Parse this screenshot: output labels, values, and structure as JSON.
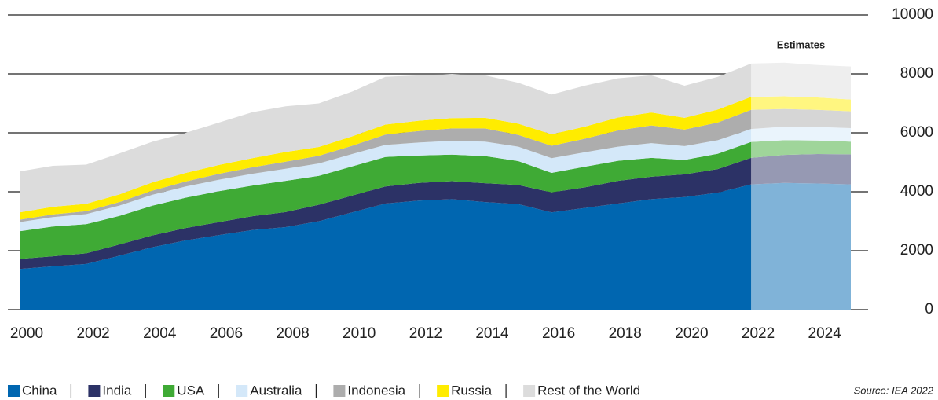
{
  "chart_data": {
    "type": "stacked_area",
    "x": [
      2000,
      2001,
      2002,
      2003,
      2004,
      2005,
      2006,
      2007,
      2008,
      2009,
      2010,
      2011,
      2012,
      2013,
      2014,
      2015,
      2016,
      2017,
      2018,
      2019,
      2020,
      2021,
      2022,
      2023,
      2024,
      2025
    ],
    "series": [
      {
        "name": "China",
        "color": "#0066b0",
        "values": [
          1380,
          1470,
          1550,
          1830,
          2120,
          2350,
          2530,
          2700,
          2800,
          3000,
          3300,
          3600,
          3700,
          3750,
          3650,
          3580,
          3300,
          3450,
          3600,
          3750,
          3820,
          3970,
          4250,
          4300,
          4280,
          4250
        ]
      },
      {
        "name": "India",
        "color": "#2c3266",
        "values": [
          340,
          340,
          360,
          380,
          400,
          420,
          440,
          470,
          510,
          560,
          570,
          580,
          600,
          610,
          640,
          650,
          680,
          700,
          770,
          760,
          770,
          800,
          900,
          950,
          1000,
          1020
        ]
      },
      {
        "name": "USA",
        "color": "#3faa35",
        "values": [
          940,
          1010,
          990,
          970,
          1010,
          1030,
          1050,
          1040,
          1060,
          980,
          990,
          1000,
          930,
          900,
          920,
          810,
          660,
          700,
          680,
          640,
          490,
          520,
          540,
          500,
          460,
          430
        ]
      },
      {
        "name": "Australia",
        "color": "#d4e8f9",
        "values": [
          310,
          320,
          340,
          350,
          370,
          380,
          390,
          400,
          410,
          420,
          420,
          410,
          440,
          470,
          490,
          490,
          500,
          490,
          480,
          500,
          470,
          460,
          440,
          460,
          460,
          460
        ]
      },
      {
        "name": "Indonesia",
        "color": "#adadad",
        "values": [
          80,
          90,
          100,
          120,
          140,
          170,
          200,
          220,
          240,
          260,
          280,
          350,
          390,
          420,
          450,
          400,
          420,
          460,
          550,
          600,
          560,
          600,
          650,
          600,
          580,
          570
        ]
      },
      {
        "name": "Russia",
        "color": "#ffec00",
        "values": [
          250,
          260,
          250,
          260,
          280,
          290,
          300,
          310,
          330,
          300,
          320,
          340,
          350,
          350,
          360,
          380,
          390,
          410,
          440,
          440,
          400,
          440,
          440,
          430,
          420,
          400
        ]
      },
      {
        "name": "Rest of the World",
        "color": "#dcdcdc",
        "values": [
          1390,
          1390,
          1330,
          1390,
          1380,
          1360,
          1440,
          1560,
          1550,
          1480,
          1520,
          1620,
          1540,
          1500,
          1440,
          1390,
          1350,
          1390,
          1330,
          1260,
          1090,
          1110,
          1130,
          1140,
          1100,
          1120
        ]
      }
    ],
    "xlim": [
      2000,
      2025
    ],
    "xticks": [
      2000,
      2002,
      2004,
      2006,
      2008,
      2010,
      2012,
      2014,
      2016,
      2018,
      2020,
      2022,
      2024
    ],
    "ylim": [
      0,
      10000
    ],
    "yticks": [
      0,
      2000,
      4000,
      6000,
      8000,
      10000
    ],
    "grid": true,
    "estimates_from": 2022,
    "estimates_label": "Estimates",
    "source": "Source: IEA 2022"
  }
}
